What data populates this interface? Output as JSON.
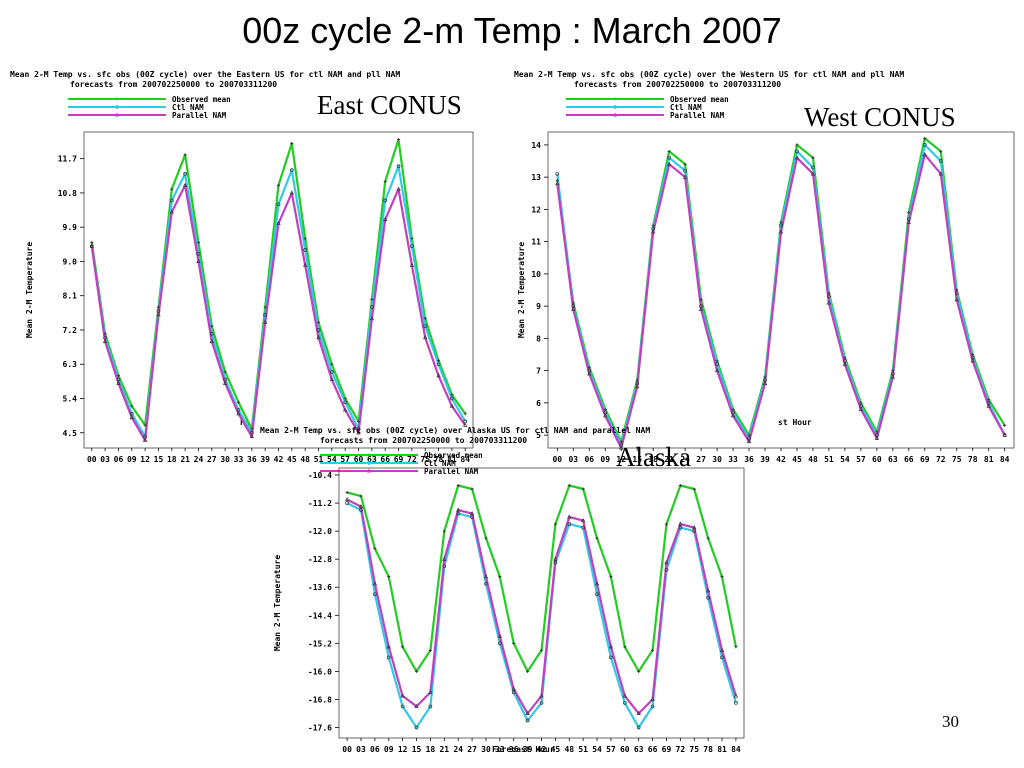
{
  "slide": {
    "title": "00z cycle 2-m Temp : March 2007",
    "labels": {
      "east": "East CONUS",
      "west": "West CONUS",
      "alaska": "Alaska"
    },
    "page_number": "30"
  },
  "colors": {
    "observed": "#22cc22",
    "ctl": "#33c8e8",
    "parallel": "#c040c0",
    "axis": "#000000",
    "frame": "#444444"
  },
  "chart_data": [
    {
      "id": "east",
      "type": "line",
      "title": [
        "Mean 2-M Temp vs. sfc obs (00Z cycle) over the Eastern US for ctl NAM and pll NAM",
        "forecasts from 200702250000 to 200703311200"
      ],
      "xlabel": "Fo",
      "ylabel": "Mean 2-M Temperature",
      "categories": [
        "00",
        "03",
        "06",
        "09",
        "12",
        "15",
        "18",
        "21",
        "24",
        "27",
        "30",
        "33",
        "36",
        "39",
        "42",
        "45",
        "48",
        "51",
        "54",
        "57",
        "60",
        "63",
        "66",
        "69",
        "72",
        "75",
        "78",
        "81",
        "84"
      ],
      "yticks": [
        "4.5",
        "5.4",
        "6.3",
        "7.2",
        "8.1",
        "9.0",
        "9.9",
        "10.8",
        "11.7"
      ],
      "ylim": [
        4.1,
        12.4
      ],
      "legend": [
        "Observed mean",
        "Ctl NAM",
        "Parallel NAM"
      ],
      "series": [
        {
          "name": "Observed mean",
          "values": [
            9.5,
            7.1,
            6.0,
            5.2,
            4.7,
            7.8,
            10.9,
            11.8,
            9.5,
            7.3,
            6.1,
            5.3,
            4.6,
            7.8,
            11.0,
            12.1,
            9.6,
            7.4,
            6.3,
            5.4,
            4.8,
            8.0,
            11.1,
            12.2,
            9.6,
            7.5,
            6.4,
            5.5,
            5.0
          ]
        },
        {
          "name": "Ctl NAM",
          "values": [
            9.4,
            7.0,
            5.9,
            5.0,
            4.4,
            7.7,
            10.6,
            11.3,
            9.2,
            7.1,
            5.9,
            5.1,
            4.5,
            7.6,
            10.5,
            11.4,
            9.3,
            7.2,
            6.1,
            5.3,
            4.6,
            7.8,
            10.6,
            11.5,
            9.4,
            7.3,
            6.3,
            5.4,
            4.8
          ]
        },
        {
          "name": "Parallel NAM",
          "values": [
            9.4,
            6.9,
            5.8,
            4.9,
            4.3,
            7.6,
            10.3,
            11.0,
            9.0,
            6.9,
            5.8,
            5.0,
            4.4,
            7.4,
            10.0,
            10.8,
            8.9,
            7.0,
            5.9,
            5.1,
            4.5,
            7.5,
            10.1,
            10.9,
            8.9,
            7.0,
            6.0,
            5.2,
            4.7
          ]
        }
      ]
    },
    {
      "id": "west",
      "type": "line",
      "title": [
        "Mean 2-M Temp vs. sfc obs (00Z cycle) over the Western US for ctl NAM and pll NAM",
        "forecasts from 200702250000 to 200703311200"
      ],
      "xlabel": "st Hour",
      "ylabel": "Mean 2-M Temperature",
      "categories": [
        "00",
        "03",
        "06",
        "09",
        "12",
        "15",
        "18",
        "21",
        "24",
        "27",
        "30",
        "33",
        "36",
        "39",
        "42",
        "45",
        "48",
        "51",
        "54",
        "57",
        "60",
        "63",
        "66",
        "69",
        "72",
        "75",
        "78",
        "81",
        "84"
      ],
      "yticks": [
        "5",
        "6",
        "7",
        "8",
        "9",
        "10",
        "11",
        "12",
        "13",
        "14"
      ],
      "ylim": [
        4.6,
        14.4
      ],
      "legend": [
        "Observed mean",
        "Ctl NAM",
        "Parallel NAM"
      ],
      "series": [
        {
          "name": "Observed mean",
          "values": [
            12.9,
            9.1,
            7.1,
            5.8,
            4.8,
            6.7,
            11.5,
            13.8,
            13.4,
            9.2,
            7.3,
            5.8,
            5.0,
            6.8,
            11.6,
            14.0,
            13.6,
            9.4,
            7.4,
            6.0,
            5.1,
            7.0,
            11.9,
            14.2,
            13.8,
            9.5,
            7.5,
            6.1,
            5.3
          ]
        },
        {
          "name": "Ctl NAM",
          "values": [
            13.1,
            9.0,
            7.0,
            5.7,
            4.7,
            6.6,
            11.4,
            13.6,
            13.2,
            9.0,
            7.2,
            5.7,
            4.9,
            6.7,
            11.5,
            13.8,
            13.3,
            9.3,
            7.3,
            5.9,
            5.0,
            6.9,
            11.7,
            14.0,
            13.5,
            9.4,
            7.4,
            6.0,
            5.0
          ]
        },
        {
          "name": "Parallel NAM",
          "values": [
            12.8,
            8.9,
            6.9,
            5.6,
            4.6,
            6.5,
            11.3,
            13.4,
            13.0,
            8.9,
            7.0,
            5.6,
            4.8,
            6.6,
            11.3,
            13.6,
            13.1,
            9.1,
            7.2,
            5.8,
            4.9,
            6.8,
            11.6,
            13.7,
            13.1,
            9.2,
            7.3,
            5.9,
            5.0
          ]
        }
      ]
    },
    {
      "id": "alaska",
      "type": "line",
      "title": [
        "Mean 2-M Temp vs. sfc obs (00Z cycle) over Alaska US for ctl NAM and parallel NAM",
        "forecasts from 200702250000 to 200703311200"
      ],
      "xlabel": "Forecast Hour",
      "ylabel": "Mean 2-M Temperature",
      "categories": [
        "00",
        "03",
        "06",
        "09",
        "12",
        "15",
        "18",
        "21",
        "24",
        "27",
        "30",
        "33",
        "36",
        "39",
        "42",
        "45",
        "48",
        "51",
        "54",
        "57",
        "60",
        "63",
        "66",
        "69",
        "72",
        "75",
        "78",
        "81",
        "84"
      ],
      "yticks": [
        "-10.4",
        "-11.2",
        "-12.0",
        "-12.8",
        "-13.6",
        "-14.4",
        "-15.2",
        "-16.0",
        "-16.8",
        "-17.6"
      ],
      "ylim": [
        -17.9,
        -10.2
      ],
      "legend": [
        "Observed mean",
        "Ctl NAM",
        "Parallel NAM"
      ],
      "series": [
        {
          "name": "Observed mean",
          "values": [
            -10.9,
            -11.0,
            -12.5,
            -13.3,
            -15.3,
            -16.0,
            -15.4,
            -12.0,
            -10.7,
            -10.8,
            -12.2,
            -13.3,
            -15.2,
            -16.0,
            -15.4,
            -11.8,
            -10.7,
            -10.8,
            -12.2,
            -13.3,
            -15.3,
            -16.0,
            -15.4,
            -11.8,
            -10.7,
            -10.8,
            -12.2,
            -13.3,
            -15.3
          ]
        },
        {
          "name": "Ctl NAM",
          "values": [
            -11.2,
            -11.4,
            -13.8,
            -15.6,
            -17.0,
            -17.6,
            -17.0,
            -13.0,
            -11.5,
            -11.6,
            -13.5,
            -15.2,
            -16.6,
            -17.4,
            -16.9,
            -12.9,
            -11.8,
            -11.9,
            -13.8,
            -15.6,
            -16.9,
            -17.6,
            -17.0,
            -13.1,
            -11.9,
            -12.0,
            -13.9,
            -15.6,
            -16.9
          ]
        },
        {
          "name": "Parallel NAM",
          "values": [
            -11.1,
            -11.3,
            -13.5,
            -15.3,
            -16.7,
            -17.0,
            -16.6,
            -12.8,
            -11.4,
            -11.5,
            -13.3,
            -15.0,
            -16.5,
            -17.2,
            -16.7,
            -12.8,
            -11.6,
            -11.7,
            -13.5,
            -15.3,
            -16.7,
            -17.2,
            -16.8,
            -12.9,
            -11.8,
            -11.9,
            -13.7,
            -15.4,
            -16.7
          ]
        }
      ]
    }
  ]
}
